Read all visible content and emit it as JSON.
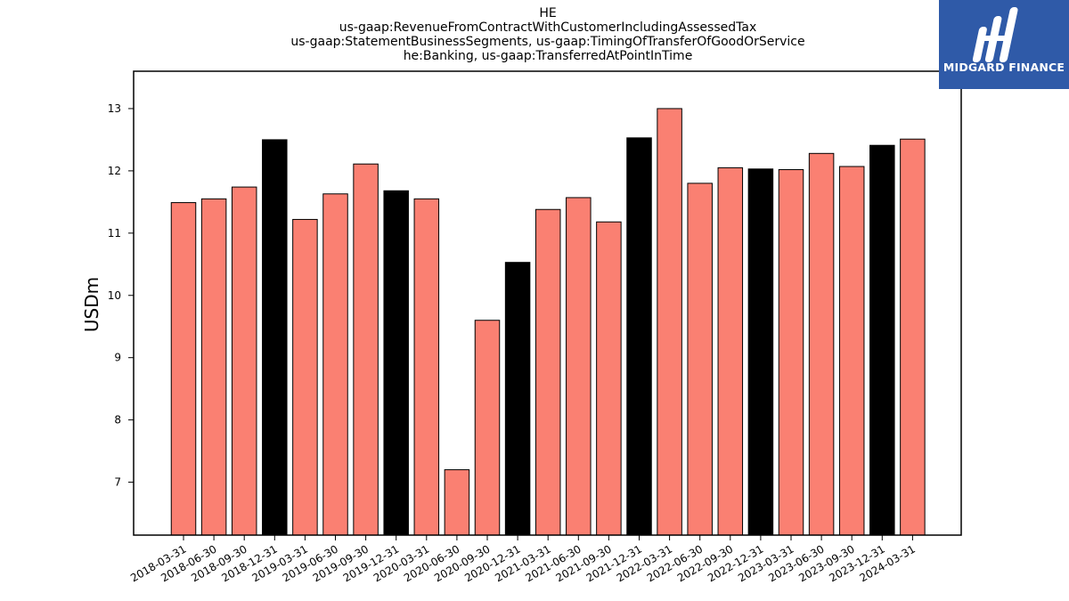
{
  "title_lines": [
    "HE",
    "us-gaap:RevenueFromContractWithCustomerIncludingAssessedTax",
    "us-gaap:StatementBusinessSegments, us-gaap:TimingOfTransferOfGoodOrService",
    "he:Banking, us-gaap:TransferredAtPointInTime"
  ],
  "logo": {
    "text": "MIDGARD FINANCE",
    "color": "#2f5aa8"
  },
  "chart_data": {
    "type": "bar",
    "title": "HE\nus-gaap:RevenueFromContractWithCustomerIncludingAssessedTax\nus-gaap:StatementBusinessSegments, us-gaap:TimingOfTransferOfGoodOrService\nhe:Banking, us-gaap:TransferredAtPointInTime",
    "xlabel": "",
    "ylabel": "USDm",
    "ylim": [
      6.15,
      13.6
    ],
    "yticks": [
      7,
      8,
      9,
      10,
      11,
      12,
      13
    ],
    "grid": false,
    "categories": [
      "2018-03-31",
      "2018-06-30",
      "2018-09-30",
      "2018-12-31",
      "2019-03-31",
      "2019-06-30",
      "2019-09-30",
      "2019-12-31",
      "2020-03-31",
      "2020-06-30",
      "2020-09-30",
      "2020-12-31",
      "2021-03-31",
      "2021-06-30",
      "2021-09-30",
      "2021-12-31",
      "2022-03-31",
      "2022-06-30",
      "2022-09-30",
      "2022-12-31",
      "2023-03-31",
      "2023-06-30",
      "2023-09-30",
      "2023-12-31",
      "2024-03-31"
    ],
    "values": [
      11.49,
      11.55,
      11.74,
      12.5,
      11.22,
      11.63,
      12.11,
      11.68,
      11.55,
      7.2,
      9.6,
      10.53,
      11.38,
      11.57,
      11.18,
      12.53,
      13.0,
      11.8,
      12.05,
      12.03,
      12.02,
      12.28,
      12.07,
      12.41,
      12.51
    ],
    "bar_colors": [
      "#fa8072",
      "#fa8072",
      "#fa8072",
      "#000000",
      "#fa8072",
      "#fa8072",
      "#fa8072",
      "#000000",
      "#fa8072",
      "#fa8072",
      "#fa8072",
      "#000000",
      "#fa8072",
      "#fa8072",
      "#fa8072",
      "#000000",
      "#fa8072",
      "#fa8072",
      "#fa8072",
      "#000000",
      "#fa8072",
      "#fa8072",
      "#fa8072",
      "#000000",
      "#fa8072"
    ],
    "colors": {
      "regular": "#fa8072",
      "year_end": "#000000",
      "edge": "#000000"
    }
  }
}
